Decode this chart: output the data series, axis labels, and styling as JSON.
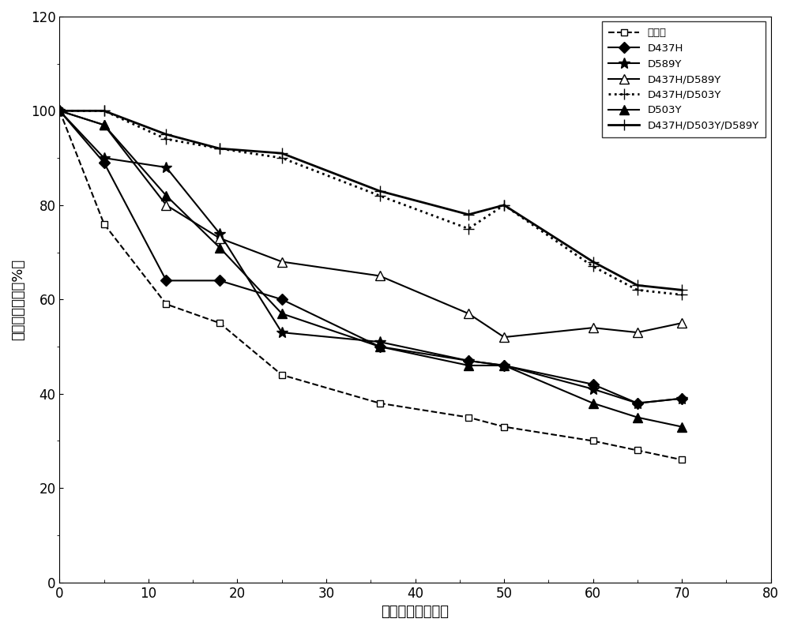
{
  "x_ticks": [
    0,
    10,
    20,
    30,
    40,
    50,
    60,
    70,
    80
  ],
  "xlim": [
    0,
    80
  ],
  "ylim": [
    0,
    120
  ],
  "y_ticks": [
    0,
    20,
    40,
    60,
    80,
    100,
    120
  ],
  "xlabel": "保温时间（小时）",
  "ylabel": "残留相对酶活（%）",
  "series": [
    {
      "label": "野生型",
      "x": [
        0,
        5,
        12,
        18,
        25,
        36,
        46,
        50,
        60,
        65,
        70
      ],
      "y": [
        100,
        76,
        59,
        55,
        44,
        38,
        35,
        33,
        30,
        28,
        26
      ],
      "color": "#000000",
      "linestyle": "--",
      "marker": "s",
      "markerfacecolor": "white",
      "markersize": 6,
      "linewidth": 1.5
    },
    {
      "label": "D437H",
      "x": [
        0,
        5,
        12,
        18,
        25,
        36,
        46,
        50,
        60,
        65,
        70
      ],
      "y": [
        100,
        89,
        64,
        64,
        60,
        50,
        47,
        46,
        42,
        38,
        39
      ],
      "color": "#000000",
      "linestyle": "-",
      "marker": "D",
      "markerfacecolor": "#000000",
      "markersize": 7,
      "linewidth": 1.5
    },
    {
      "label": "D589Y",
      "x": [
        0,
        5,
        12,
        18,
        25,
        36,
        46,
        50,
        60,
        65,
        70
      ],
      "y": [
        100,
        90,
        88,
        74,
        53,
        51,
        47,
        46,
        41,
        38,
        39
      ],
      "color": "#000000",
      "linestyle": "-",
      "marker": "*",
      "markerfacecolor": "#000000",
      "markersize": 10,
      "linewidth": 1.5
    },
    {
      "label": "D437H/D589Y",
      "x": [
        0,
        5,
        12,
        18,
        25,
        36,
        46,
        50,
        60,
        65,
        70
      ],
      "y": [
        100,
        97,
        80,
        73,
        68,
        65,
        57,
        52,
        54,
        53,
        55
      ],
      "color": "#000000",
      "linestyle": "-",
      "marker": "^",
      "markerfacecolor": "white",
      "markersize": 8,
      "linewidth": 1.5
    },
    {
      "label": "D437H/D503Y",
      "x": [
        0,
        5,
        12,
        18,
        25,
        36,
        46,
        50,
        60,
        65,
        70
      ],
      "y": [
        100,
        100,
        94,
        92,
        90,
        82,
        75,
        80,
        67,
        62,
        61
      ],
      "color": "#000000",
      "linestyle": ":",
      "marker": "+",
      "markerfacecolor": "#000000",
      "markersize": 10,
      "linewidth": 2.0
    },
    {
      "label": "D503Y",
      "x": [
        0,
        5,
        12,
        18,
        25,
        36,
        46,
        50,
        60,
        65,
        70
      ],
      "y": [
        100,
        97,
        82,
        71,
        57,
        50,
        46,
        46,
        38,
        35,
        33
      ],
      "color": "#000000",
      "linestyle": "-",
      "marker": "^",
      "markerfacecolor": "#000000",
      "markersize": 8,
      "linewidth": 1.5
    },
    {
      "label": "D437H/D503Y/D589Y",
      "x": [
        0,
        5,
        12,
        18,
        25,
        36,
        46,
        50,
        60,
        65,
        70
      ],
      "y": [
        100,
        100,
        95,
        92,
        91,
        83,
        78,
        80,
        68,
        63,
        62
      ],
      "color": "#000000",
      "linestyle": "-",
      "marker": "+",
      "markerfacecolor": "#000000",
      "markersize": 10,
      "linewidth": 2.0
    }
  ],
  "legend_loc": "upper right",
  "figsize": [
    10.0,
    7.98
  ],
  "dpi": 100
}
